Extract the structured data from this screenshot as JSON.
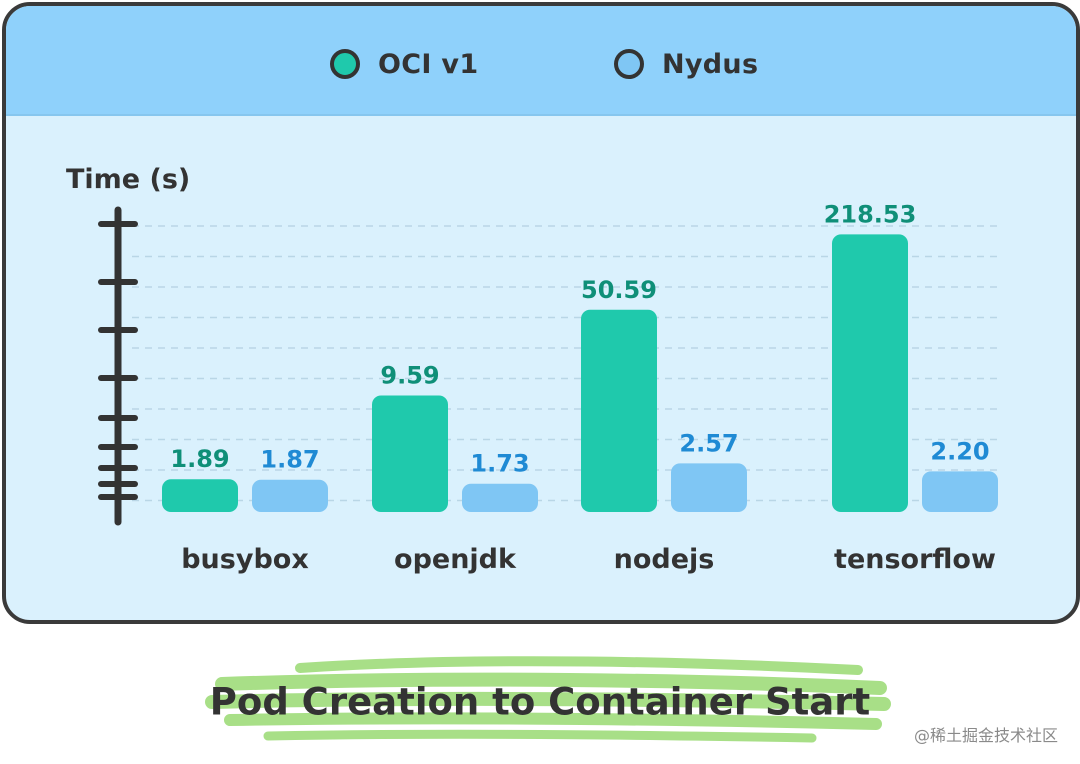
{
  "chart_data": {
    "type": "bar",
    "categories": [
      "busybox",
      "openjdk",
      "nodejs",
      "tensorflow"
    ],
    "series": [
      {
        "name": "OCI v1",
        "color": "#1fc9ac",
        "values": [
          1.89,
          9.59,
          50.59,
          218.53
        ],
        "label_color": "#0f8f78"
      },
      {
        "name": "Nydus",
        "color": "#7fc6f4",
        "values": [
          1.87,
          1.73,
          2.57,
          2.2
        ],
        "label_color": "#1f8ad4"
      }
    ],
    "data_labels": {
      "OCI v1": [
        "1.89",
        "9.59",
        "50.59",
        "218.53"
      ],
      "Nydus": [
        "1.87",
        "1.73",
        "2.57",
        "2.20"
      ]
    },
    "ylabel": "Time (s)",
    "y_scale": "log",
    "ylim": [
      1,
      300
    ],
    "grid": true,
    "legend_position": "top-center"
  },
  "caption": "Pod Creation to Container Start",
  "watermark": "@稀土掘金技术社区",
  "colors": {
    "card_background": "#daf1fd",
    "legend_background": "#8fd1fb",
    "caption_highlight": "#9fdc7a",
    "axis": "#333333"
  }
}
